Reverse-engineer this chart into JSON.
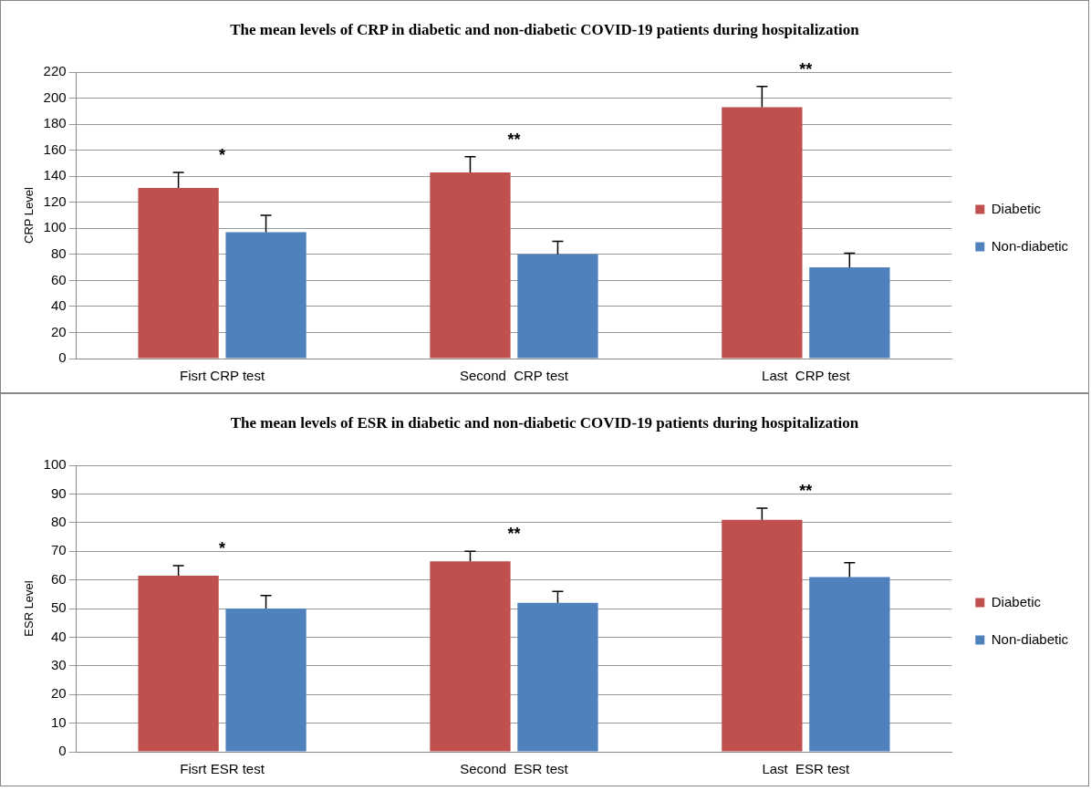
{
  "chart_data": [
    {
      "type": "bar",
      "title": "The mean levels of CRP in diabetic and non-diabetic COVID-19  patients during hospitalization",
      "ylabel": "CRP Level",
      "categories": [
        "Fisrt CRP test",
        "Second  CRP test",
        "Last  CRP test"
      ],
      "series": [
        {
          "name": "Diabetic",
          "color": "#c0504d",
          "values": [
            131,
            143,
            193
          ],
          "errors": [
            [
              131,
              143
            ],
            [
              143,
              155
            ],
            [
              193,
              209
            ]
          ]
        },
        {
          "name": "Non-diabetic",
          "color": "#4f81bd",
          "values": [
            97,
            80,
            70
          ],
          "errors": [
            [
              97,
              110
            ],
            [
              80,
              90
            ],
            [
              70,
              81
            ]
          ]
        }
      ],
      "ylim": [
        0,
        220
      ],
      "yticks": [
        0,
        20,
        40,
        60,
        80,
        100,
        120,
        140,
        160,
        180,
        200,
        220
      ],
      "grid": "y",
      "legend": "right",
      "annotations": [
        "*",
        "**",
        "**"
      ]
    },
    {
      "type": "bar",
      "title": "The mean levels of ESR in diabetic and non-diabetic COVID-19 patients during hospitalization",
      "ylabel": "ESR Level",
      "categories": [
        "Fisrt ESR test",
        "Second  ESR test",
        "Last  ESR test"
      ],
      "series": [
        {
          "name": "Diabetic",
          "color": "#c0504d",
          "values": [
            61.5,
            66.5,
            81
          ],
          "errors": [
            [
              61.5,
              65
            ],
            [
              66.5,
              70
            ],
            [
              81,
              85
            ]
          ]
        },
        {
          "name": "Non-diabetic",
          "color": "#4f81bd",
          "values": [
            50,
            52,
            61
          ],
          "errors": [
            [
              50,
              54.5
            ],
            [
              52,
              56
            ],
            [
              61,
              66
            ]
          ]
        }
      ],
      "ylim": [
        0,
        100
      ],
      "yticks": [
        0,
        10,
        20,
        30,
        40,
        50,
        60,
        70,
        80,
        90,
        100
      ],
      "grid": "y",
      "legend": "right",
      "annotations": [
        "*",
        "**",
        "**"
      ]
    }
  ]
}
